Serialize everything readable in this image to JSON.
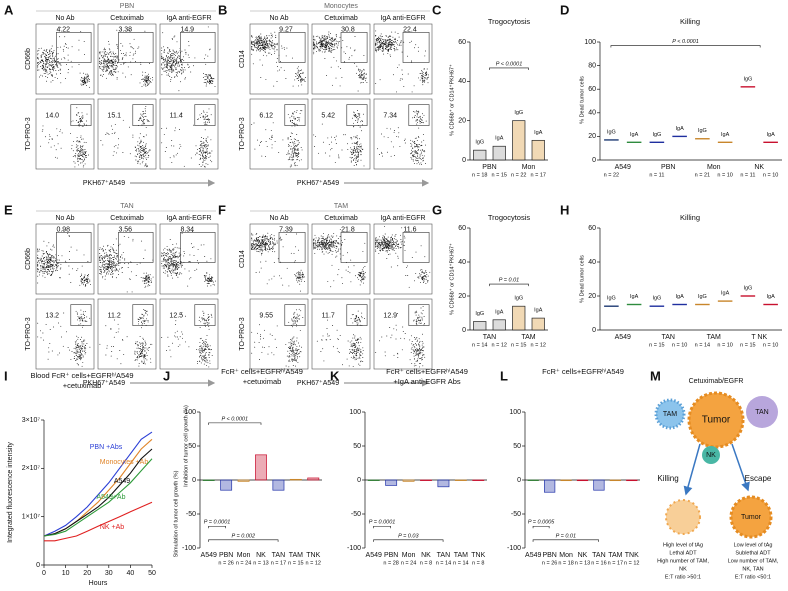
{
  "flow_panels": [
    {
      "letter": "A",
      "title": "PBN",
      "columns": [
        "No Ab",
        "Cetuximab",
        "IgA anti-EGFR"
      ],
      "ylabel_top": "CD66b",
      "ylabel_bottom": "TO-PRO-3",
      "xlabel": "PKH67⁺A549",
      "top_gates": [
        "4.22",
        "3.38",
        "14.9"
      ],
      "bottom_gates": [
        "14.0",
        "15.1",
        "11.4"
      ]
    },
    {
      "letter": "B",
      "title": "Monocytes",
      "columns": [
        "No Ab",
        "Cetuximab",
        "IgA anti-EGFR"
      ],
      "ylabel_top": "CD14",
      "ylabel_bottom": "TO-PRO-3",
      "xlabel": "PKH67⁺A549",
      "top_gates": [
        "9.27",
        "30.8",
        "22.4"
      ],
      "bottom_gates": [
        "6.12",
        "5.42",
        "7.34"
      ]
    },
    {
      "letter": "E",
      "title": "TAN",
      "columns": [
        "No Ab",
        "Cetuximab",
        "IgA anti-EGFR"
      ],
      "ylabel_top": "CD66b",
      "ylabel_bottom": "TO-PRO-3",
      "xlabel": "PKH67⁺A549",
      "top_gates": [
        "0.98",
        "3.56",
        "8.34"
      ],
      "bottom_gates": [
        "13.2",
        "11.2",
        "12.5"
      ]
    },
    {
      "letter": "F",
      "title": "TAM",
      "columns": [
        "No Ab",
        "Cetuximab",
        "IgA anti-EGFR"
      ],
      "ylabel_top": "CD14",
      "ylabel_bottom": "TO-PRO-3",
      "xlabel": "PKH67⁺A549",
      "top_gates": [
        "7.39",
        "21.8",
        "11.6"
      ],
      "bottom_gates": [
        "9.55",
        "11.7",
        "12.9"
      ]
    }
  ],
  "chart_data": [
    {
      "type": "bar",
      "letter": "C",
      "title": "Trogocytosis",
      "ylabels": [
        "% CD66b⁺ or CD14⁺PKH67⁺"
      ],
      "groups": [
        "PBN",
        "Mon"
      ],
      "categories": [
        "IgG",
        "IgA",
        "IgG",
        "IgA"
      ],
      "values": [
        5,
        7,
        20,
        10
      ],
      "colors": [
        "#dcdcdc",
        "#dcdcdc",
        "#f1d9b5",
        "#f1d9b5"
      ],
      "n_labels": [
        "n = 18",
        "n = 15",
        "n = 22",
        "n = 17"
      ],
      "ylim": [
        0,
        60
      ],
      "yticks": [
        0,
        20,
        40,
        60
      ],
      "annotations": [
        "P < 0.0001"
      ]
    },
    {
      "type": "strip",
      "letter": "D",
      "title": "Killing",
      "ylabels": [
        "% Dead tumor cells"
      ],
      "groups": [
        "A549",
        "PBN",
        "Mon",
        "NK"
      ],
      "categories": [
        "IgG",
        "IgA",
        "IgG",
        "IgA",
        "IgG",
        "IgA",
        "IgG",
        "IgA"
      ],
      "values": [
        17,
        15,
        15,
        20,
        18,
        15,
        62,
        15
      ],
      "colors": [
        "#1f3b73",
        "#2e8b3e",
        "#1f2f9f",
        "#1f2f9f",
        "#c8862b",
        "#c8862b",
        "#c8102e",
        "#c8102e"
      ],
      "n_labels": [
        "n = 22",
        null,
        "n = 11",
        null,
        "n = 21",
        "n = 10",
        "n = 11",
        "n = 10"
      ],
      "ylim": [
        0,
        100
      ],
      "yticks": [
        0,
        20,
        40,
        60,
        80,
        100
      ],
      "annotations": [
        "P < 0.0001"
      ]
    },
    {
      "type": "bar",
      "letter": "G",
      "title": "Trogocytosis",
      "ylabels": [
        "% CD66b⁺ or CD14⁺PKH67⁺"
      ],
      "groups": [
        "TAN",
        "TAM"
      ],
      "categories": [
        "IgG",
        "IgA",
        "IgG",
        "IgA"
      ],
      "values": [
        5,
        6,
        14,
        7
      ],
      "colors": [
        "#dcdcdc",
        "#dcdcdc",
        "#f1d9b5",
        "#f1d9b5"
      ],
      "n_labels": [
        "n = 14",
        "n = 12",
        "n = 15",
        "n = 12"
      ],
      "ylim": [
        0,
        60
      ],
      "yticks": [
        0,
        20,
        40,
        60
      ],
      "annotations": [
        "P = 0.01"
      ]
    },
    {
      "type": "strip",
      "letter": "H",
      "title": "Killing",
      "ylabels": [
        "% Dead tumor cells"
      ],
      "groups": [
        "A549",
        "TAN",
        "TAM",
        "T NK"
      ],
      "categories": [
        "IgG",
        "IgA",
        "IgG",
        "IgA",
        "IgG",
        "IgA",
        "IgG",
        "IgA"
      ],
      "values": [
        14,
        15,
        14,
        15,
        15,
        17,
        20,
        15
      ],
      "colors": [
        "#1f3b73",
        "#2e8b3e",
        "#1f2f9f",
        "#1f2f9f",
        "#c8862b",
        "#c8862b",
        "#c8102e",
        "#c8102e"
      ],
      "n_labels": [
        null,
        null,
        "n = 15",
        "n = 10",
        "n = 14",
        "n = 10",
        "n = 15",
        "n = 10"
      ],
      "ylim": [
        0,
        60
      ],
      "yticks": [
        0,
        20,
        40,
        60
      ],
      "annotations": []
    },
    {
      "type": "line",
      "letter": "I",
      "title": [
        "Blood FcR⁺ cells+EGFRʰⁱA549",
        "+cetuximab"
      ],
      "ylabel": "Integrated fluorescence intensity",
      "xlabel": "Hours",
      "x": [
        0,
        5,
        10,
        15,
        20,
        25,
        30,
        35,
        40,
        45,
        50
      ],
      "xlim": [
        0,
        50
      ],
      "xticks": [
        0,
        10,
        20,
        30,
        40,
        50
      ],
      "ylim": [
        0,
        30000000
      ],
      "yticks": [
        0,
        {
          "value": 10000000,
          "label": "1×10⁷"
        },
        {
          "value": 20000000,
          "label": "2×10⁷"
        },
        {
          "value": 30000000,
          "label": "3×10⁷"
        }
      ],
      "series": [
        {
          "name": "PBN +Abs",
          "color": "#2b3fd6",
          "values": [
            6000000,
            7000000,
            8200000,
            10000000,
            12000000,
            14500000,
            17000000,
            20000000,
            23000000,
            26000000,
            27500000
          ]
        },
        {
          "name": "Monocytes +Ab",
          "color": "#e0852a",
          "values": [
            6000000,
            6500000,
            7500000,
            9000000,
            11000000,
            13000000,
            15500000,
            18000000,
            21000000,
            24000000,
            26000000
          ]
        },
        {
          "name": "A549",
          "color": "#111111",
          "values": [
            6000000,
            6500000,
            7500000,
            9000000,
            10500000,
            12000000,
            14000000,
            16500000,
            19000000,
            22000000,
            24000000
          ]
        },
        {
          "name": "A549+Ab",
          "color": "#2e9b3a",
          "values": [
            6000000,
            6300000,
            7000000,
            8500000,
            10000000,
            11500000,
            13000000,
            15000000,
            17000000,
            19500000,
            22000000
          ]
        },
        {
          "name": "NK +Ab",
          "color": "#e02020",
          "values": [
            5000000,
            5000000,
            5500000,
            6000000,
            7000000,
            8000000,
            9000000,
            10000000,
            11000000,
            12000000,
            13000000
          ]
        }
      ]
    },
    {
      "type": "bar",
      "letter": "J",
      "title": [
        "FcR⁺ cells+EGFRʰⁱA549",
        "+cetuximab"
      ],
      "ylabels": [
        "Inhibition of tumor cell growth (%)",
        "Stimulation of tumor cell growth (%)"
      ],
      "categories": [
        "A549",
        "PBN",
        "Mon",
        "NK",
        "TAN",
        "TAM",
        "TNK"
      ],
      "values": [
        0,
        -15,
        -2,
        37,
        -15,
        1,
        3
      ],
      "colors": [
        "#2e7d32",
        "#2233aa",
        "#c8862b",
        "#c8102e",
        "#2233aa",
        "#c8862b",
        "#c8102e"
      ],
      "n_labels": [
        null,
        "n = 26",
        "n = 24",
        "n = 13",
        "n = 17",
        "n = 15",
        "n = 12"
      ],
      "ylim": [
        -100,
        100
      ],
      "yticks": [
        -100,
        -50,
        0,
        50,
        100
      ],
      "annotations": [
        "P < 0.0001",
        "P = 0.0001",
        "P = 0.002"
      ]
    },
    {
      "type": "bar",
      "letter": "K",
      "title": [
        "FcR⁺ cells+EGFRʰⁱA549",
        "+IgA anti-EGFR Abs"
      ],
      "ylabels": [],
      "categories": [
        "A549",
        "PBN",
        "Mon",
        "NK",
        "TAN",
        "TAM",
        "TNK"
      ],
      "values": [
        0,
        -8,
        -2,
        0,
        -10,
        0,
        0
      ],
      "colors": [
        "#2e7d32",
        "#2233aa",
        "#c8862b",
        "#c8102e",
        "#2233aa",
        "#c8862b",
        "#c8102e"
      ],
      "n_labels": [
        null,
        "n = 28",
        "n = 24",
        "n = 8",
        "n = 14",
        "n = 14",
        "n = 8"
      ],
      "ylim": [
        -100,
        100
      ],
      "yticks": [
        -100,
        -50,
        0,
        50,
        100
      ],
      "annotations": [
        "P = 0.0001",
        "P = 0.03"
      ]
    },
    {
      "type": "bar",
      "letter": "L",
      "title": [
        "FcR⁺ cells+EGFRʰⁱA549"
      ],
      "ylabels": [],
      "categories": [
        "A549",
        "PBN",
        "Mon",
        "NK",
        "TAN",
        "TAM",
        "TNK"
      ],
      "values": [
        0,
        -18,
        -1,
        -1,
        -15,
        -1,
        -1
      ],
      "colors": [
        "#2e7d32",
        "#2233aa",
        "#c8862b",
        "#c8102e",
        "#2233aa",
        "#c8862b",
        "#c8102e"
      ],
      "n_labels": [
        null,
        "n = 26",
        "n = 18",
        "n = 13",
        "n = 16",
        "n = 17",
        "n = 12"
      ],
      "ylim": [
        -100,
        100
      ],
      "yticks": [
        -100,
        -50,
        0,
        50,
        100
      ],
      "annotations": [
        "P = 0.0005",
        "P = 0.01"
      ]
    }
  ],
  "diagram": {
    "letter": "M",
    "ligand": "Cetuximab/EGFR",
    "tam": "TAM",
    "tumor": "Tumor",
    "tan": "TAN",
    "nk": "NK",
    "killing": {
      "title": "Killing",
      "lines": [
        "High level of tAg",
        "Lethal ADT",
        "High number of TAM,",
        "NK",
        "E:T ratio >50:1"
      ]
    },
    "escape": {
      "title": "Escape",
      "tumor": "Tumor",
      "lines": [
        "Low level of tAg",
        "Sublethal ADT",
        "Low number of TAM,",
        "NK, TAN",
        "E:T ratio <50:1"
      ]
    }
  }
}
